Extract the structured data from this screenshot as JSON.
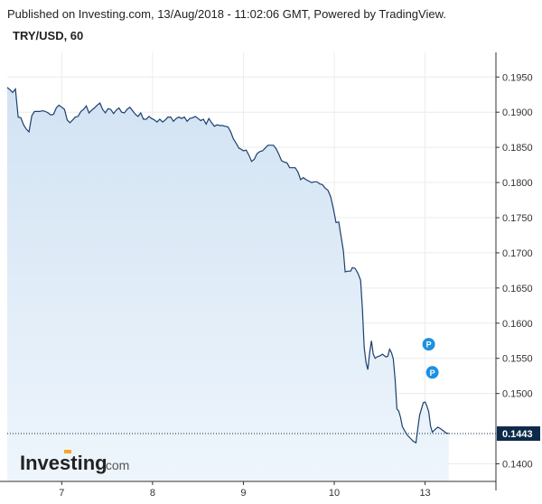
{
  "header": {
    "published": "Published on Investing.com, 13/Aug/2018 - 11:02:06 GMT, Powered by TradingView.",
    "symbol": "TRY/USD, 60"
  },
  "logo": {
    "main": "Investing",
    "suffix": ".com"
  },
  "colors": {
    "line": "#1c3f6e",
    "fill_top": "#d2e3f3",
    "fill_bottom": "#eef5fc",
    "grid": "#ececec",
    "last_price_bg": "#0e2a4a",
    "marker": "#1e90e0"
  },
  "chart_data": {
    "type": "area",
    "ylim": [
      0.1375,
      0.1985
    ],
    "y_ticks": [
      0.195,
      0.19,
      0.185,
      0.18,
      0.175,
      0.17,
      0.165,
      0.16,
      0.155,
      0.15,
      0.14
    ],
    "y_tick_labels": [
      "0.1950",
      "0.1900",
      "0.1850",
      "0.1800",
      "0.1750",
      "0.1700",
      "0.1650",
      "0.1600",
      "0.1550",
      "0.1500",
      "0.1400"
    ],
    "x_ticks": [
      {
        "label": "7",
        "t": 1
      },
      {
        "label": "8",
        "t": 2
      },
      {
        "label": "9",
        "t": 3
      },
      {
        "label": "10",
        "t": 4
      },
      {
        "label": "13",
        "t": 5
      }
    ],
    "xlim": [
      0.4,
      5.78
    ],
    "last_price": 0.1443,
    "last_price_label": "0.1443",
    "markers": [
      {
        "label": "P",
        "t": 5.04,
        "y": 0.157
      },
      {
        "label": "P",
        "t": 5.08,
        "y": 0.153
      }
    ],
    "points": [
      [
        0.4,
        0.1935
      ],
      [
        0.43,
        0.1932
      ],
      [
        0.46,
        0.1928
      ],
      [
        0.49,
        0.1933
      ],
      [
        0.52,
        0.1893
      ],
      [
        0.55,
        0.1892
      ],
      [
        0.58,
        0.1882
      ],
      [
        0.61,
        0.1876
      ],
      [
        0.64,
        0.1872
      ],
      [
        0.67,
        0.1895
      ],
      [
        0.7,
        0.1901
      ],
      [
        0.73,
        0.1901
      ],
      [
        0.76,
        0.1901
      ],
      [
        0.79,
        0.1902
      ],
      [
        0.82,
        0.1901
      ],
      [
        0.85,
        0.1899
      ],
      [
        0.88,
        0.1896
      ],
      [
        0.91,
        0.1897
      ],
      [
        0.94,
        0.1906
      ],
      [
        0.97,
        0.191
      ],
      [
        1.0,
        0.1907
      ],
      [
        1.03,
        0.1904
      ],
      [
        1.06,
        0.1889
      ],
      [
        1.09,
        0.1885
      ],
      [
        1.12,
        0.1889
      ],
      [
        1.15,
        0.1893
      ],
      [
        1.18,
        0.1894
      ],
      [
        1.21,
        0.1901
      ],
      [
        1.24,
        0.1904
      ],
      [
        1.27,
        0.1909
      ],
      [
        1.3,
        0.1899
      ],
      [
        1.33,
        0.1903
      ],
      [
        1.36,
        0.1906
      ],
      [
        1.39,
        0.191
      ],
      [
        1.42,
        0.1913
      ],
      [
        1.45,
        0.1904
      ],
      [
        1.48,
        0.1899
      ],
      [
        1.51,
        0.1905
      ],
      [
        1.54,
        0.1904
      ],
      [
        1.57,
        0.1898
      ],
      [
        1.6,
        0.1903
      ],
      [
        1.63,
        0.1906
      ],
      [
        1.66,
        0.19
      ],
      [
        1.69,
        0.1899
      ],
      [
        1.72,
        0.1904
      ],
      [
        1.75,
        0.1907
      ],
      [
        1.78,
        0.1902
      ],
      [
        1.81,
        0.1897
      ],
      [
        1.84,
        0.1894
      ],
      [
        1.87,
        0.1899
      ],
      [
        1.9,
        0.189
      ],
      [
        1.93,
        0.189
      ],
      [
        1.96,
        0.1894
      ],
      [
        1.99,
        0.1891
      ],
      [
        2.02,
        0.1889
      ],
      [
        2.05,
        0.1886
      ],
      [
        2.08,
        0.189
      ],
      [
        2.11,
        0.1886
      ],
      [
        2.14,
        0.1889
      ],
      [
        2.17,
        0.1893
      ],
      [
        2.2,
        0.1893
      ],
      [
        2.23,
        0.1887
      ],
      [
        2.26,
        0.1891
      ],
      [
        2.29,
        0.1893
      ],
      [
        2.32,
        0.1891
      ],
      [
        2.35,
        0.1893
      ],
      [
        2.38,
        0.1887
      ],
      [
        2.41,
        0.1891
      ],
      [
        2.44,
        0.1892
      ],
      [
        2.47,
        0.1894
      ],
      [
        2.5,
        0.1891
      ],
      [
        2.53,
        0.1888
      ],
      [
        2.56,
        0.189
      ],
      [
        2.59,
        0.1883
      ],
      [
        2.62,
        0.1891
      ],
      [
        2.65,
        0.1885
      ],
      [
        2.68,
        0.188
      ],
      [
        2.71,
        0.1882
      ],
      [
        2.74,
        0.1881
      ],
      [
        2.77,
        0.1881
      ],
      [
        2.8,
        0.188
      ],
      [
        2.83,
        0.1879
      ],
      [
        2.86,
        0.1872
      ],
      [
        2.89,
        0.1862
      ],
      [
        2.92,
        0.1856
      ],
      [
        2.95,
        0.1849
      ],
      [
        2.98,
        0.1847
      ],
      [
        3.0,
        0.1845
      ],
      [
        3.03,
        0.1846
      ],
      [
        3.06,
        0.1839
      ],
      [
        3.09,
        0.183
      ],
      [
        3.12,
        0.1833
      ],
      [
        3.15,
        0.1841
      ],
      [
        3.18,
        0.1844
      ],
      [
        3.21,
        0.1845
      ],
      [
        3.24,
        0.1849
      ],
      [
        3.27,
        0.1853
      ],
      [
        3.3,
        0.1853
      ],
      [
        3.33,
        0.1853
      ],
      [
        3.36,
        0.1848
      ],
      [
        3.39,
        0.184
      ],
      [
        3.42,
        0.1831
      ],
      [
        3.45,
        0.1829
      ],
      [
        3.48,
        0.1828
      ],
      [
        3.51,
        0.1821
      ],
      [
        3.54,
        0.1821
      ],
      [
        3.57,
        0.1821
      ],
      [
        3.6,
        0.1815
      ],
      [
        3.63,
        0.1804
      ],
      [
        3.66,
        0.1807
      ],
      [
        3.69,
        0.1804
      ],
      [
        3.72,
        0.1802
      ],
      [
        3.75,
        0.18
      ],
      [
        3.78,
        0.1801
      ],
      [
        3.81,
        0.1801
      ],
      [
        3.84,
        0.1798
      ],
      [
        3.87,
        0.1797
      ],
      [
        3.9,
        0.1792
      ],
      [
        3.93,
        0.1789
      ],
      [
        3.96,
        0.178
      ],
      [
        3.99,
        0.1763
      ],
      [
        4.02,
        0.1743
      ],
      [
        4.05,
        0.1744
      ],
      [
        4.08,
        0.1719
      ],
      [
        4.1,
        0.1703
      ],
      [
        4.12,
        0.1673
      ],
      [
        4.15,
        0.1674
      ],
      [
        4.18,
        0.1674
      ],
      [
        4.2,
        0.1679
      ],
      [
        4.23,
        0.1678
      ],
      [
        4.26,
        0.1671
      ],
      [
        4.29,
        0.1661
      ],
      [
        4.31,
        0.162
      ],
      [
        4.33,
        0.1565
      ],
      [
        4.35,
        0.1544
      ],
      [
        4.37,
        0.1534
      ],
      [
        4.39,
        0.1558
      ],
      [
        4.41,
        0.1575
      ],
      [
        4.43,
        0.1556
      ],
      [
        4.45,
        0.155
      ],
      [
        4.47,
        0.1552
      ],
      [
        4.49,
        0.1553
      ],
      [
        4.51,
        0.1554
      ],
      [
        4.53,
        0.1556
      ],
      [
        4.55,
        0.1554
      ],
      [
        4.57,
        0.1552
      ],
      [
        4.59,
        0.1553
      ],
      [
        4.61,
        0.1563
      ],
      [
        4.63,
        0.1558
      ],
      [
        4.65,
        0.1549
      ],
      [
        4.67,
        0.152
      ],
      [
        4.69,
        0.1478
      ],
      [
        4.71,
        0.1475
      ],
      [
        4.73,
        0.1466
      ],
      [
        4.75,
        0.1453
      ],
      [
        4.78,
        0.1446
      ],
      [
        4.81,
        0.144
      ],
      [
        4.84,
        0.1436
      ],
      [
        4.87,
        0.1432
      ],
      [
        4.9,
        0.143
      ],
      [
        4.92,
        0.145
      ],
      [
        4.94,
        0.1469
      ],
      [
        4.96,
        0.1478
      ],
      [
        4.98,
        0.1487
      ],
      [
        5.0,
        0.1488
      ],
      [
        5.02,
        0.1482
      ],
      [
        5.04,
        0.1474
      ],
      [
        5.06,
        0.1454
      ],
      [
        5.08,
        0.1445
      ],
      [
        5.11,
        0.1449
      ],
      [
        5.14,
        0.1452
      ],
      [
        5.17,
        0.145
      ],
      [
        5.2,
        0.1447
      ],
      [
        5.23,
        0.1444
      ],
      [
        5.26,
        0.1443
      ]
    ]
  }
}
